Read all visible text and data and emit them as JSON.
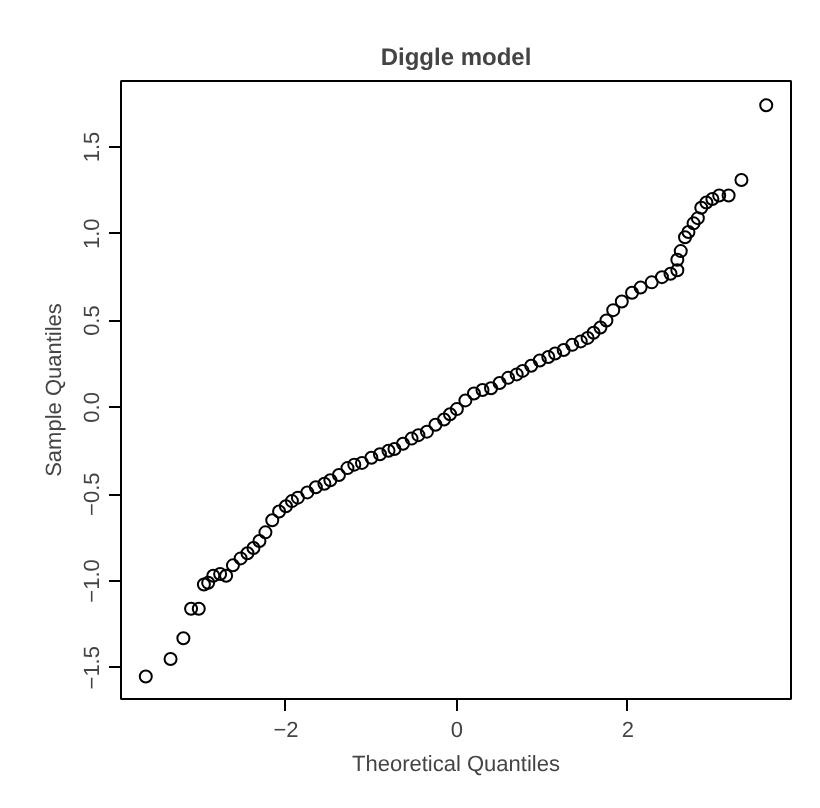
{
  "chart_data": {
    "type": "scatter",
    "title": "Diggle model",
    "xlabel": "Theoretical Quantiles",
    "ylabel": "Sample Quantiles",
    "x": [
      -3.64,
      -3.35,
      -3.2,
      -3.11,
      -3.02,
      -2.96,
      -2.91,
      -2.85,
      -2.77,
      -2.7,
      -2.62,
      -2.53,
      -2.45,
      -2.38,
      -2.31,
      -2.24,
      -2.16,
      -2.08,
      -2.0,
      -1.93,
      -1.86,
      -1.75,
      -1.65,
      -1.55,
      -1.48,
      -1.38,
      -1.28,
      -1.2,
      -1.11,
      -1.0,
      -0.9,
      -0.8,
      -0.73,
      -0.63,
      -0.53,
      -0.45,
      -0.35,
      -0.25,
      -0.15,
      -0.08,
      0.0,
      0.1,
      0.2,
      0.3,
      0.4,
      0.5,
      0.6,
      0.7,
      0.77,
      0.87,
      0.97,
      1.07,
      1.15,
      1.25,
      1.35,
      1.45,
      1.53,
      1.6,
      1.68,
      1.75,
      1.83,
      1.93,
      2.05,
      2.15,
      2.28,
      2.4,
      2.5,
      2.58,
      2.58,
      2.62,
      2.67,
      2.71,
      2.77,
      2.82,
      2.86,
      2.92,
      2.99,
      3.07,
      3.18,
      3.33,
      3.62
    ],
    "series": [
      {
        "color": "#000000",
        "values": [
          -1.55,
          -1.45,
          -1.33,
          -1.16,
          -1.16,
          -1.02,
          -1.01,
          -0.97,
          -0.96,
          -0.97,
          -0.91,
          -0.87,
          -0.84,
          -0.81,
          -0.77,
          -0.72,
          -0.65,
          -0.6,
          -0.57,
          -0.54,
          -0.52,
          -0.49,
          -0.46,
          -0.44,
          -0.42,
          -0.39,
          -0.35,
          -0.33,
          -0.32,
          -0.29,
          -0.27,
          -0.25,
          -0.24,
          -0.21,
          -0.18,
          -0.16,
          -0.14,
          -0.1,
          -0.07,
          -0.04,
          -0.01,
          0.04,
          0.08,
          0.1,
          0.11,
          0.14,
          0.17,
          0.19,
          0.21,
          0.24,
          0.27,
          0.29,
          0.31,
          0.33,
          0.36,
          0.38,
          0.4,
          0.43,
          0.46,
          0.5,
          0.56,
          0.61,
          0.66,
          0.69,
          0.72,
          0.75,
          0.77,
          0.79,
          0.85,
          0.9,
          0.98,
          1.01,
          1.06,
          1.09,
          1.15,
          1.18,
          1.2,
          1.22,
          1.22,
          1.31,
          1.74
        ]
      }
    ],
    "xlim": [
      -3.93,
      3.91
    ],
    "ylim": [
      -1.68,
      1.88
    ],
    "xticks": [
      -2,
      0,
      2
    ],
    "yticks": [
      -1.5,
      {
        "value": -1,
        "label": "−1.0"
      },
      -0.5,
      {
        "value": 0,
        "label": "0.0"
      },
      0.5,
      {
        "value": 1,
        "label": "1.0"
      },
      1.5
    ],
    "marker": "circle",
    "grid": false
  }
}
